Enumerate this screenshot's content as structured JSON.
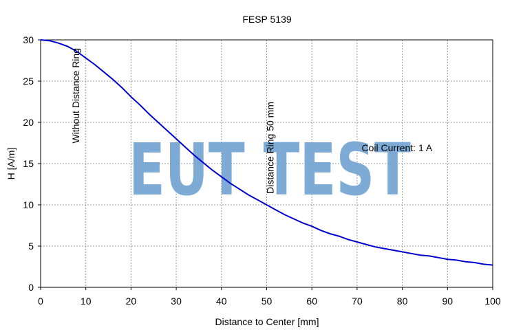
{
  "chart_data": {
    "type": "line",
    "title": "FESP 5139",
    "xlabel": "Distance to Center [mm]",
    "ylabel": "H [A/m]",
    "xlim": [
      0,
      100
    ],
    "ylim": [
      0,
      30
    ],
    "xticks": [
      0,
      10,
      20,
      30,
      40,
      50,
      60,
      70,
      80,
      90,
      100
    ],
    "yticks": [
      0,
      5,
      10,
      15,
      20,
      25,
      30
    ],
    "grid": true,
    "grid_style": "dotted",
    "series": [
      {
        "color": "#0000cc",
        "x": [
          0,
          2,
          4,
          6,
          8,
          10,
          12,
          14,
          16,
          18,
          20,
          22,
          24,
          26,
          28,
          30,
          32,
          34,
          36,
          38,
          40,
          42,
          44,
          46,
          48,
          50,
          52,
          54,
          56,
          58,
          60,
          62,
          64,
          66,
          68,
          70,
          72,
          74,
          76,
          78,
          80,
          82,
          84,
          86,
          88,
          90,
          92,
          94,
          96,
          98,
          100
        ],
        "y": [
          30.0,
          29.9,
          29.6,
          29.2,
          28.6,
          27.8,
          27.0,
          26.1,
          25.2,
          24.2,
          23.1,
          22.1,
          21.0,
          20.0,
          19.0,
          18.0,
          17.0,
          16.0,
          15.1,
          14.2,
          13.4,
          12.6,
          11.9,
          11.2,
          10.6,
          10.0,
          9.4,
          8.8,
          8.3,
          7.8,
          7.4,
          6.9,
          6.5,
          6.2,
          5.8,
          5.5,
          5.2,
          4.9,
          4.7,
          4.5,
          4.3,
          4.1,
          3.9,
          3.8,
          3.6,
          3.4,
          3.3,
          3.1,
          3.0,
          2.8,
          2.7
        ]
      }
    ],
    "annotations": [
      {
        "text": "Without Distance Ring",
        "x": 8.5,
        "y": 30,
        "rotation": -90
      },
      {
        "text": "Distance Ring 50 mm",
        "x": 51.5,
        "y": 23.5,
        "rotation": -90
      },
      {
        "text": "Coil Current: 1 A",
        "x": 71,
        "y": 16.5,
        "rotation": 0
      }
    ],
    "watermark": {
      "text": "EUT TEST",
      "color": "#6fa3d2"
    }
  }
}
